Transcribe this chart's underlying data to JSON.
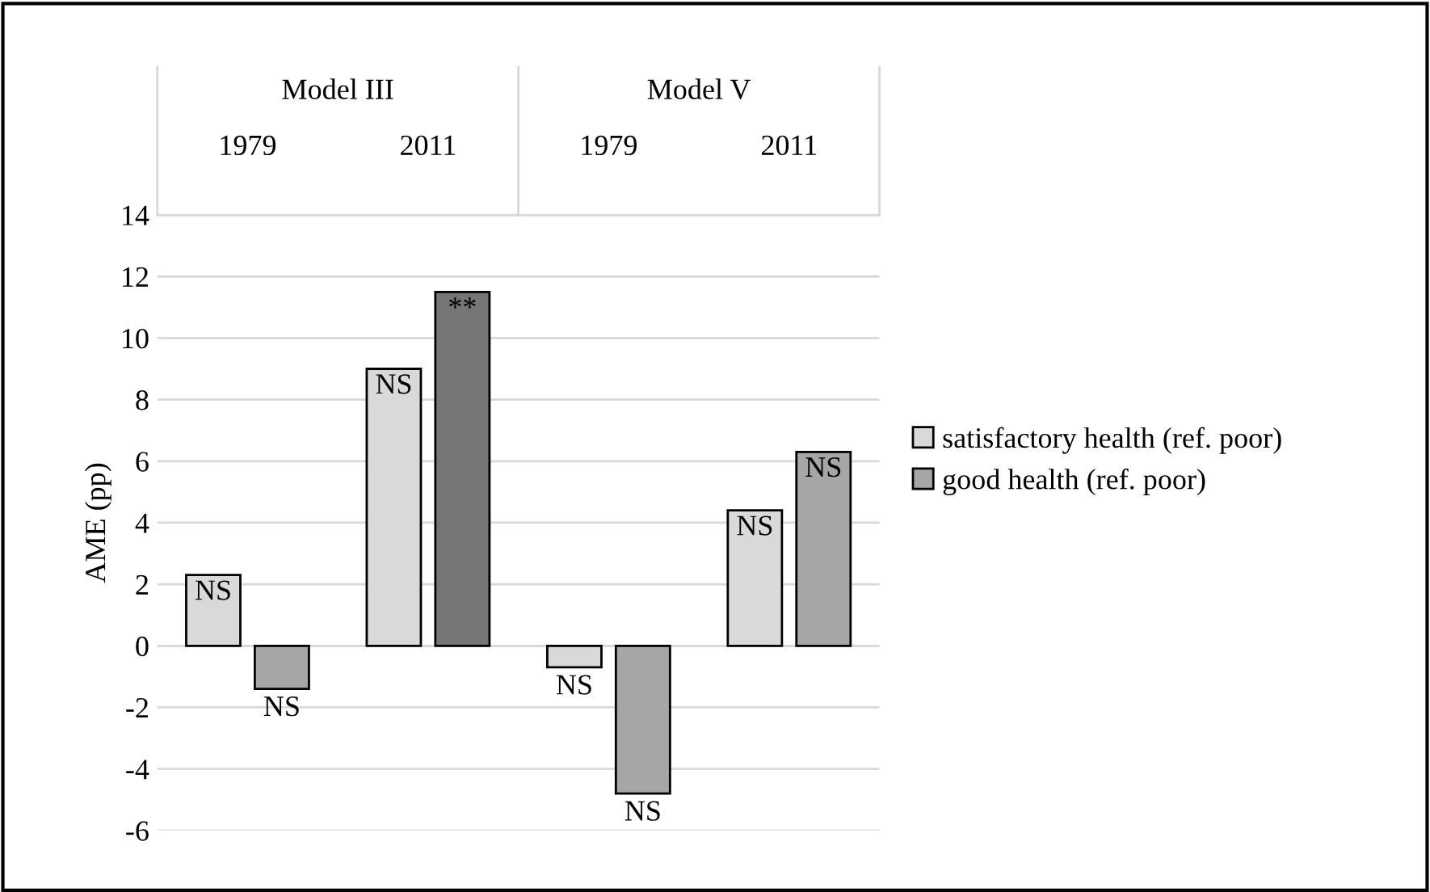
{
  "chart_data": {
    "type": "bar",
    "categories": [
      "1979",
      "2011",
      "1979",
      "2011"
    ],
    "series": [
      {
        "name": "satisfactory health (ref. poor)",
        "colors": [
          "#d9d9d9",
          "#d9d9d9",
          "#d9d9d9",
          "#d9d9d9"
        ],
        "values": [
          2.3,
          9.0,
          -0.7,
          4.4
        ],
        "value_labels": [
          "NS",
          "NS",
          "NS",
          "NS"
        ]
      },
      {
        "name": "good health (ref. poor)",
        "colors": [
          "#a6a6a6",
          "#767676",
          "#a6a6a6",
          "#a6a6a6"
        ],
        "values": [
          -1.4,
          11.5,
          -4.8,
          6.3
        ],
        "value_labels": [
          "NS",
          "**",
          "NS",
          "NS"
        ]
      }
    ],
    "annotations": [
      "Model III",
      "Model V"
    ],
    "ylabel": "AME (pp)",
    "ylim": [
      -6,
      14
    ],
    "yticks": [
      -6,
      -4,
      -2,
      0,
      2,
      4,
      6,
      8,
      10,
      12,
      14
    ],
    "grid": "y",
    "legend": "right"
  }
}
